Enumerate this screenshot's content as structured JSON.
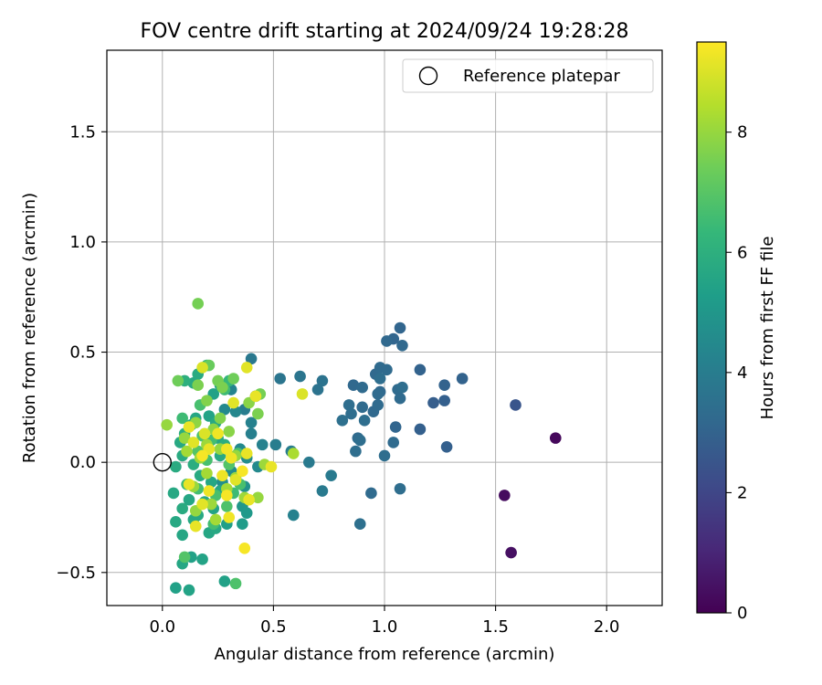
{
  "chart_data": {
    "type": "scatter",
    "title": "FOV centre drift starting at 2024/09/24 19:28:28",
    "xlabel": "Angular distance from reference (arcmin)",
    "ylabel": "Rotation from reference (arcmin)",
    "xlim": [
      -0.25,
      2.25
    ],
    "ylim": [
      -0.65,
      1.87
    ],
    "xticks": [
      0.0,
      0.5,
      1.0,
      1.5,
      2.0
    ],
    "xtick_labels": [
      "0.0",
      "0.5",
      "1.0",
      "1.5",
      "2.0"
    ],
    "yticks": [
      -0.5,
      0.0,
      0.5,
      1.0,
      1.5
    ],
    "ytick_labels": [
      "−0.5",
      "0.0",
      "0.5",
      "1.0",
      "1.5"
    ],
    "grid": true,
    "legend": {
      "placement": "top-right",
      "entries": [
        "Reference platepar"
      ]
    },
    "reference_point": {
      "x": 0.0,
      "y": 0.0
    },
    "colorbar": {
      "label": "Hours from first FF file",
      "colormap": "viridis",
      "range": [
        0,
        9.5
      ],
      "ticks": [
        0,
        2,
        4,
        6,
        8
      ],
      "tick_labels": [
        "0",
        "2",
        "4",
        "6",
        "8"
      ]
    },
    "points": [
      {
        "x": 1.77,
        "y": 0.11,
        "c": 0.2
      },
      {
        "x": 1.54,
        "y": -0.15,
        "c": 0.3
      },
      {
        "x": 1.57,
        "y": -0.41,
        "c": 0.4
      },
      {
        "x": 1.59,
        "y": 0.26,
        "c": 2.5
      },
      {
        "x": 1.35,
        "y": 0.38,
        "c": 3.0
      },
      {
        "x": 1.27,
        "y": 0.35,
        "c": 3.0
      },
      {
        "x": 1.27,
        "y": 0.28,
        "c": 2.9
      },
      {
        "x": 1.22,
        "y": 0.27,
        "c": 2.8
      },
      {
        "x": 1.28,
        "y": 0.07,
        "c": 2.9
      },
      {
        "x": 1.16,
        "y": 0.42,
        "c": 3.0
      },
      {
        "x": 1.16,
        "y": 0.15,
        "c": 2.9
      },
      {
        "x": 1.07,
        "y": 0.61,
        "c": 3.1
      },
      {
        "x": 1.08,
        "y": 0.53,
        "c": 3.2
      },
      {
        "x": 1.04,
        "y": 0.56,
        "c": 3.1
      },
      {
        "x": 1.01,
        "y": 0.55,
        "c": 3.2
      },
      {
        "x": 0.98,
        "y": 0.43,
        "c": 3.3
      },
      {
        "x": 1.01,
        "y": 0.42,
        "c": 3.3
      },
      {
        "x": 0.96,
        "y": 0.4,
        "c": 3.2
      },
      {
        "x": 0.98,
        "y": 0.38,
        "c": 3.4
      },
      {
        "x": 1.06,
        "y": 0.33,
        "c": 3.3
      },
      {
        "x": 1.08,
        "y": 0.34,
        "c": 3.4
      },
      {
        "x": 1.07,
        "y": 0.29,
        "c": 3.3
      },
      {
        "x": 0.98,
        "y": 0.32,
        "c": 3.2
      },
      {
        "x": 0.97,
        "y": 0.31,
        "c": 3.3
      },
      {
        "x": 0.97,
        "y": 0.26,
        "c": 3.3
      },
      {
        "x": 0.95,
        "y": 0.23,
        "c": 3.2
      },
      {
        "x": 1.05,
        "y": 0.16,
        "c": 3.1
      },
      {
        "x": 1.04,
        "y": 0.09,
        "c": 3.3
      },
      {
        "x": 1.0,
        "y": 0.03,
        "c": 3.4
      },
      {
        "x": 1.07,
        "y": -0.12,
        "c": 3.4
      },
      {
        "x": 0.94,
        "y": -0.14,
        "c": 3.3
      },
      {
        "x": 0.89,
        "y": -0.28,
        "c": 3.5
      },
      {
        "x": 0.86,
        "y": 0.35,
        "c": 3.2
      },
      {
        "x": 0.9,
        "y": 0.34,
        "c": 3.3
      },
      {
        "x": 0.84,
        "y": 0.26,
        "c": 3.4
      },
      {
        "x": 0.9,
        "y": 0.25,
        "c": 3.3
      },
      {
        "x": 0.85,
        "y": 0.22,
        "c": 3.4
      },
      {
        "x": 0.81,
        "y": 0.19,
        "c": 3.5
      },
      {
        "x": 0.91,
        "y": 0.19,
        "c": 3.4
      },
      {
        "x": 0.88,
        "y": 0.11,
        "c": 3.3
      },
      {
        "x": 0.89,
        "y": 0.1,
        "c": 3.4
      },
      {
        "x": 0.87,
        "y": 0.05,
        "c": 3.4
      },
      {
        "x": 0.72,
        "y": 0.37,
        "c": 3.6
      },
      {
        "x": 0.7,
        "y": 0.33,
        "c": 3.6
      },
      {
        "x": 0.62,
        "y": 0.39,
        "c": 3.7
      },
      {
        "x": 0.53,
        "y": 0.38,
        "c": 3.7
      },
      {
        "x": 0.4,
        "y": 0.47,
        "c": 3.8
      },
      {
        "x": 0.66,
        "y": 0.0,
        "c": 3.9
      },
      {
        "x": 0.76,
        "y": -0.06,
        "c": 3.9
      },
      {
        "x": 0.72,
        "y": -0.13,
        "c": 3.9
      },
      {
        "x": 0.58,
        "y": 0.05,
        "c": 4.0
      },
      {
        "x": 0.51,
        "y": 0.08,
        "c": 4.0
      },
      {
        "x": 0.59,
        "y": -0.24,
        "c": 4.2
      },
      {
        "x": 0.37,
        "y": 0.24,
        "c": 4.0
      },
      {
        "x": 0.42,
        "y": 0.3,
        "c": 4.1
      },
      {
        "x": 0.4,
        "y": 0.18,
        "c": 4.2
      },
      {
        "x": 0.4,
        "y": 0.13,
        "c": 4.1
      },
      {
        "x": 0.45,
        "y": 0.08,
        "c": 4.2
      },
      {
        "x": 0.31,
        "y": 0.33,
        "c": 4.3
      },
      {
        "x": 0.33,
        "y": 0.23,
        "c": 4.4
      },
      {
        "x": 0.28,
        "y": 0.24,
        "c": 4.5
      },
      {
        "x": 0.35,
        "y": 0.06,
        "c": 4.5
      },
      {
        "x": 0.38,
        "y": 0.02,
        "c": 4.6
      },
      {
        "x": 0.43,
        "y": -0.02,
        "c": 4.5
      },
      {
        "x": 0.31,
        "y": -0.04,
        "c": 4.6
      },
      {
        "x": 0.27,
        "y": -0.09,
        "c": 4.7
      },
      {
        "x": 0.37,
        "y": -0.11,
        "c": 4.8
      },
      {
        "x": 0.36,
        "y": -0.2,
        "c": 5.0
      },
      {
        "x": 0.38,
        "y": -0.23,
        "c": 5.1
      },
      {
        "x": 0.36,
        "y": -0.28,
        "c": 5.2
      },
      {
        "x": 0.29,
        "y": -0.28,
        "c": 5.3
      },
      {
        "x": 0.28,
        "y": -0.54,
        "c": 5.4
      },
      {
        "x": 0.06,
        "y": -0.57,
        "c": 5.4
      },
      {
        "x": 0.12,
        "y": -0.58,
        "c": 5.5
      },
      {
        "x": 0.13,
        "y": -0.43,
        "c": 5.4
      },
      {
        "x": 0.18,
        "y": -0.44,
        "c": 5.5
      },
      {
        "x": 0.09,
        "y": -0.46,
        "c": 5.6
      },
      {
        "x": 0.09,
        "y": -0.33,
        "c": 5.6
      },
      {
        "x": 0.06,
        "y": -0.27,
        "c": 5.7
      },
      {
        "x": 0.05,
        "y": -0.14,
        "c": 5.7
      },
      {
        "x": 0.09,
        "y": -0.21,
        "c": 5.8
      },
      {
        "x": 0.12,
        "y": -0.17,
        "c": 5.6
      },
      {
        "x": 0.14,
        "y": -0.26,
        "c": 5.7
      },
      {
        "x": 0.16,
        "y": -0.24,
        "c": 5.7
      },
      {
        "x": 0.19,
        "y": -0.18,
        "c": 5.7
      },
      {
        "x": 0.21,
        "y": -0.32,
        "c": 5.6
      },
      {
        "x": 0.24,
        "y": -0.3,
        "c": 5.7
      },
      {
        "x": 0.23,
        "y": -0.21,
        "c": 5.5
      },
      {
        "x": 0.26,
        "y": -0.13,
        "c": 5.6
      },
      {
        "x": 0.22,
        "y": -0.09,
        "c": 5.6
      },
      {
        "x": 0.17,
        "y": -0.06,
        "c": 5.8
      },
      {
        "x": 0.14,
        "y": -0.01,
        "c": 5.9
      },
      {
        "x": 0.09,
        "y": 0.03,
        "c": 5.8
      },
      {
        "x": 0.06,
        "y": -0.02,
        "c": 5.8
      },
      {
        "x": 0.08,
        "y": 0.09,
        "c": 5.7
      },
      {
        "x": 0.1,
        "y": 0.13,
        "c": 5.9
      },
      {
        "x": 0.13,
        "y": 0.17,
        "c": 5.8
      },
      {
        "x": 0.15,
        "y": 0.2,
        "c": 5.6
      },
      {
        "x": 0.21,
        "y": 0.21,
        "c": 5.5
      },
      {
        "x": 0.24,
        "y": 0.18,
        "c": 5.7
      },
      {
        "x": 0.25,
        "y": 0.11,
        "c": 5.6
      },
      {
        "x": 0.28,
        "y": 0.08,
        "c": 5.9
      },
      {
        "x": 0.26,
        "y": 0.03,
        "c": 5.7
      },
      {
        "x": 0.23,
        "y": 0.31,
        "c": 5.4
      },
      {
        "x": 0.26,
        "y": 0.35,
        "c": 5.5
      },
      {
        "x": 0.14,
        "y": 0.36,
        "c": 5.7
      },
      {
        "x": 0.16,
        "y": 0.4,
        "c": 5.8
      },
      {
        "x": 0.1,
        "y": 0.37,
        "c": 6.0
      },
      {
        "x": 0.2,
        "y": 0.44,
        "c": 6.3
      },
      {
        "x": 0.3,
        "y": 0.37,
        "c": 6.3
      },
      {
        "x": 0.28,
        "y": 0.33,
        "c": 6.5
      },
      {
        "x": 0.17,
        "y": 0.26,
        "c": 6.7
      },
      {
        "x": 0.09,
        "y": 0.2,
        "c": 6.5
      },
      {
        "x": 0.18,
        "y": 0.12,
        "c": 6.8
      },
      {
        "x": 0.22,
        "y": 0.1,
        "c": 6.6
      },
      {
        "x": 0.16,
        "y": 0.05,
        "c": 6.9
      },
      {
        "x": 0.2,
        "y": 0.01,
        "c": 6.7
      },
      {
        "x": 0.11,
        "y": -0.1,
        "c": 6.5
      },
      {
        "x": 0.16,
        "y": -0.12,
        "c": 6.6
      },
      {
        "x": 0.24,
        "y": -0.15,
        "c": 6.7
      },
      {
        "x": 0.29,
        "y": -0.2,
        "c": 6.8
      },
      {
        "x": 0.32,
        "y": -0.14,
        "c": 6.5
      },
      {
        "x": 0.35,
        "y": -0.1,
        "c": 6.7
      },
      {
        "x": 0.3,
        "y": -0.01,
        "c": 6.9
      },
      {
        "x": 0.34,
        "y": 0.04,
        "c": 6.8
      },
      {
        "x": 0.23,
        "y": -0.28,
        "c": 6.6
      },
      {
        "x": 0.33,
        "y": -0.55,
        "c": 6.8
      },
      {
        "x": 0.1,
        "y": -0.43,
        "c": 6.9
      },
      {
        "x": 0.16,
        "y": 0.72,
        "c": 7.5
      },
      {
        "x": 0.07,
        "y": 0.37,
        "c": 7.4
      },
      {
        "x": 0.21,
        "y": 0.44,
        "c": 7.3
      },
      {
        "x": 0.25,
        "y": 0.37,
        "c": 7.5
      },
      {
        "x": 0.32,
        "y": 0.38,
        "c": 7.4
      },
      {
        "x": 0.16,
        "y": 0.35,
        "c": 7.6
      },
      {
        "x": 0.27,
        "y": 0.34,
        "c": 7.6
      },
      {
        "x": 0.44,
        "y": 0.31,
        "c": 7.5
      },
      {
        "x": 0.2,
        "y": 0.28,
        "c": 7.7
      },
      {
        "x": 0.39,
        "y": 0.27,
        "c": 7.8
      },
      {
        "x": 0.43,
        "y": 0.22,
        "c": 7.6
      },
      {
        "x": 0.26,
        "y": 0.2,
        "c": 7.7
      },
      {
        "x": 0.15,
        "y": 0.18,
        "c": 7.9
      },
      {
        "x": 0.02,
        "y": 0.17,
        "c": 8.0
      },
      {
        "x": 0.23,
        "y": 0.15,
        "c": 7.9
      },
      {
        "x": 0.3,
        "y": 0.14,
        "c": 7.8
      },
      {
        "x": 0.1,
        "y": 0.11,
        "c": 8.0
      },
      {
        "x": 0.2,
        "y": 0.08,
        "c": 8.1
      },
      {
        "x": 0.26,
        "y": 0.06,
        "c": 8.0
      },
      {
        "x": 0.11,
        "y": 0.05,
        "c": 8.2
      },
      {
        "x": 0.17,
        "y": 0.02,
        "c": 8.1
      },
      {
        "x": 0.33,
        "y": 0.03,
        "c": 8.0
      },
      {
        "x": 0.46,
        "y": -0.01,
        "c": 8.1
      },
      {
        "x": 0.2,
        "y": -0.05,
        "c": 8.2
      },
      {
        "x": 0.33,
        "y": -0.07,
        "c": 8.1
      },
      {
        "x": 0.14,
        "y": -0.11,
        "c": 8.0
      },
      {
        "x": 0.29,
        "y": -0.12,
        "c": 8.2
      },
      {
        "x": 0.37,
        "y": -0.16,
        "c": 8.1
      },
      {
        "x": 0.43,
        "y": -0.16,
        "c": 8.0
      },
      {
        "x": 0.22,
        "y": -0.19,
        "c": 8.1
      },
      {
        "x": 0.15,
        "y": -0.22,
        "c": 8.0
      },
      {
        "x": 0.24,
        "y": -0.26,
        "c": 8.2
      },
      {
        "x": 0.59,
        "y": 0.04,
        "c": 8.3
      },
      {
        "x": 0.18,
        "y": 0.43,
        "c": 9.0
      },
      {
        "x": 0.38,
        "y": 0.43,
        "c": 9.1
      },
      {
        "x": 0.63,
        "y": 0.31,
        "c": 9.0
      },
      {
        "x": 0.42,
        "y": 0.3,
        "c": 9.2
      },
      {
        "x": 0.32,
        "y": 0.27,
        "c": 9.1
      },
      {
        "x": 0.12,
        "y": 0.16,
        "c": 9.2
      },
      {
        "x": 0.19,
        "y": 0.13,
        "c": 9.0
      },
      {
        "x": 0.25,
        "y": 0.13,
        "c": 9.3
      },
      {
        "x": 0.14,
        "y": 0.09,
        "c": 9.1
      },
      {
        "x": 0.21,
        "y": 0.06,
        "c": 9.2
      },
      {
        "x": 0.29,
        "y": 0.06,
        "c": 9.3
      },
      {
        "x": 0.18,
        "y": 0.03,
        "c": 9.4
      },
      {
        "x": 0.38,
        "y": 0.04,
        "c": 9.2
      },
      {
        "x": 0.31,
        "y": 0.02,
        "c": 9.3
      },
      {
        "x": 0.49,
        "y": -0.02,
        "c": 9.2
      },
      {
        "x": 0.36,
        "y": -0.04,
        "c": 9.4
      },
      {
        "x": 0.27,
        "y": -0.06,
        "c": 9.3
      },
      {
        "x": 0.33,
        "y": -0.08,
        "c": 9.1
      },
      {
        "x": 0.12,
        "y": -0.1,
        "c": 9.2
      },
      {
        "x": 0.21,
        "y": -0.13,
        "c": 9.3
      },
      {
        "x": 0.29,
        "y": -0.15,
        "c": 9.4
      },
      {
        "x": 0.39,
        "y": -0.17,
        "c": 9.2
      },
      {
        "x": 0.18,
        "y": -0.19,
        "c": 9.1
      },
      {
        "x": 0.3,
        "y": -0.25,
        "c": 9.3
      },
      {
        "x": 0.15,
        "y": -0.29,
        "c": 9.2
      },
      {
        "x": 0.37,
        "y": -0.39,
        "c": 9.4
      }
    ]
  }
}
